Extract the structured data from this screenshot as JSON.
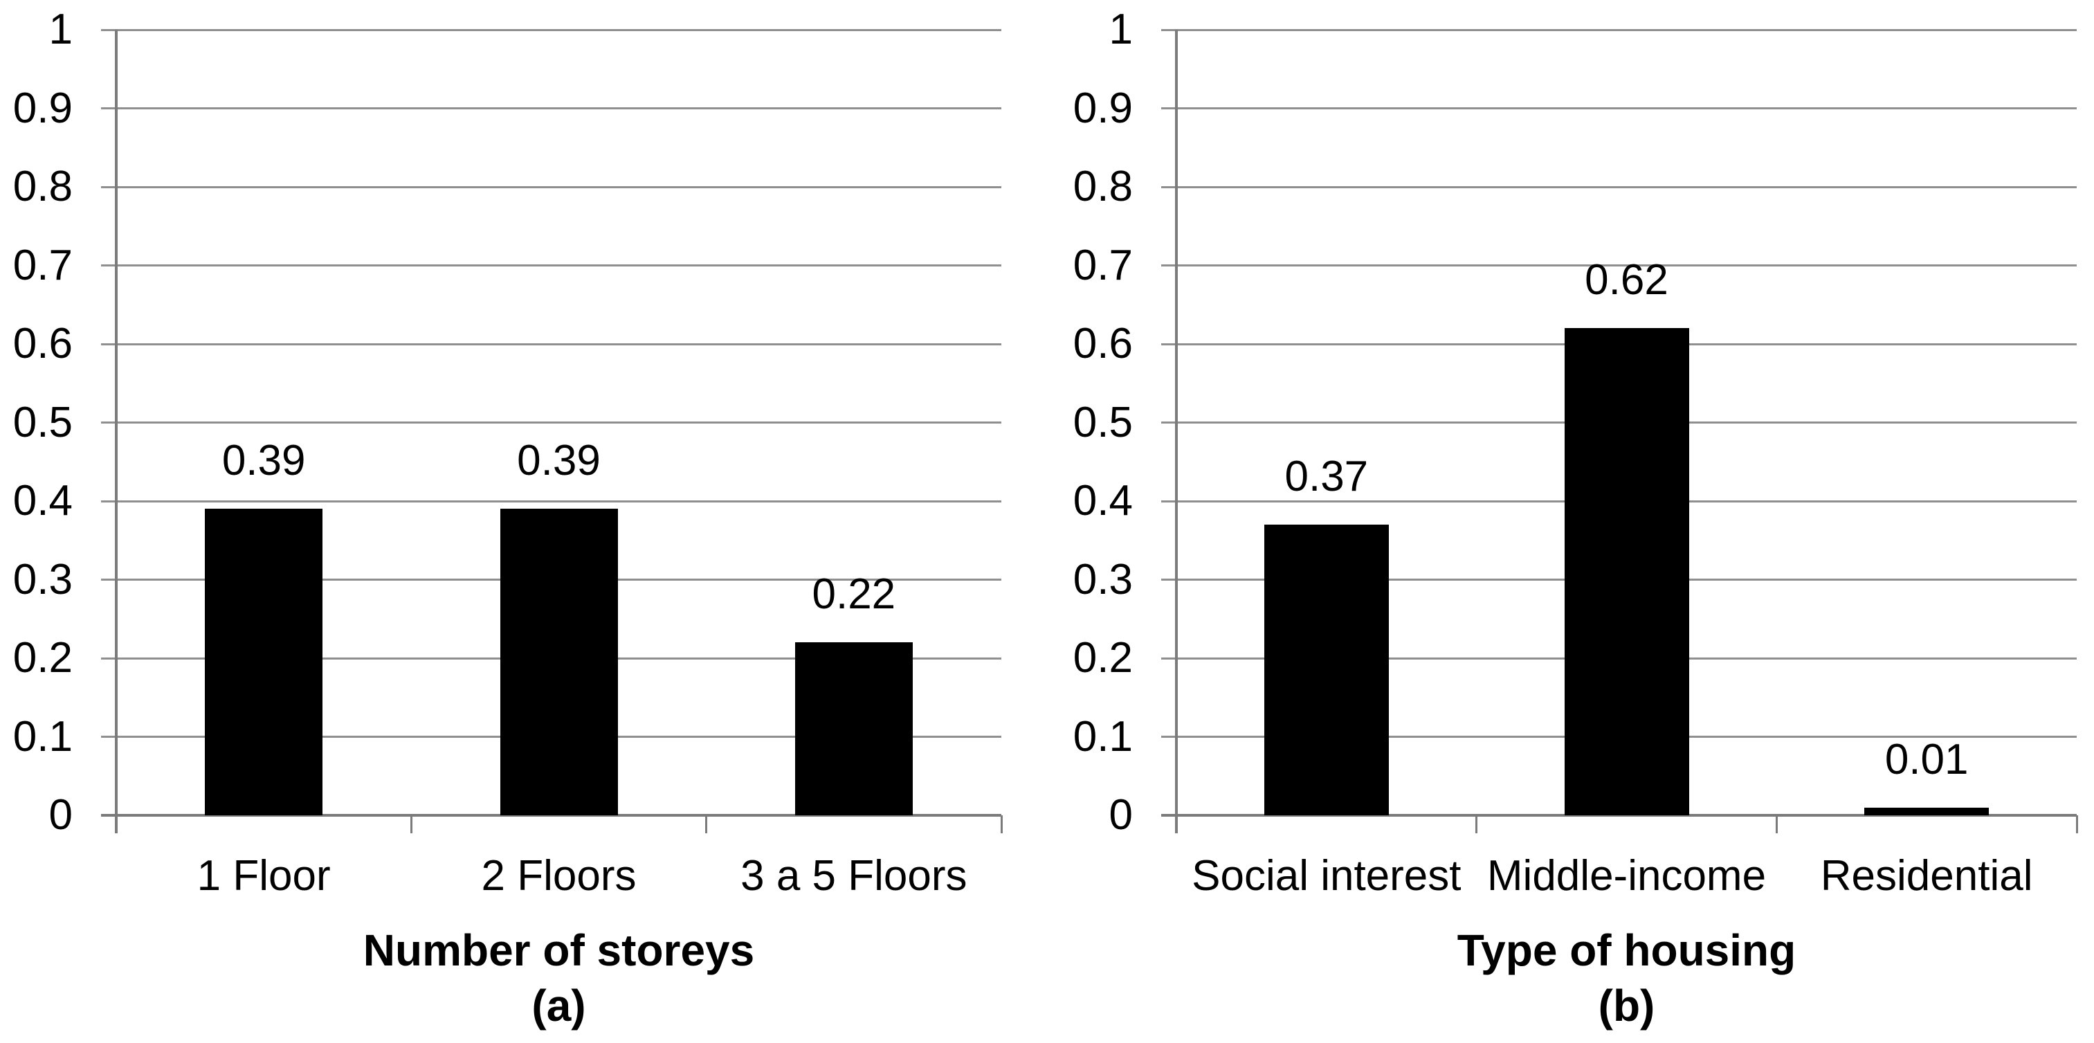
{
  "figure": {
    "background": "#ffffff"
  },
  "styles": {
    "bar_color": "#000000",
    "gridline_color": "#8f8f8f",
    "axis_color": "#7b7b7b",
    "text_color": "#000000"
  },
  "chart_data": [
    {
      "type": "bar",
      "panel": "a",
      "title": "(a)",
      "xlabel": "Number of storeys",
      "ylabel": "",
      "categories": [
        "1 Floor",
        "2 Floors",
        "3 a 5 Floors"
      ],
      "values": [
        0.39,
        0.39,
        0.22
      ],
      "data_labels": [
        "0.39",
        "0.39",
        "0.22"
      ],
      "ylim": [
        0,
        1
      ],
      "ytick_step": 0.1,
      "y_ticks": [
        "1",
        "0.9",
        "0.8",
        "0.7",
        "0.6",
        "0.5",
        "0.4",
        "0.3",
        "0.2",
        "0.1",
        "0"
      ],
      "grid": true,
      "legend": false,
      "bar_color": "#000000"
    },
    {
      "type": "bar",
      "panel": "b",
      "title": "(b)",
      "xlabel": "Type of housing",
      "ylabel": "",
      "categories": [
        "Social interest",
        "Middle-income",
        "Residential"
      ],
      "values": [
        0.37,
        0.62,
        0.01
      ],
      "data_labels": [
        "0.37",
        "0.62",
        "0.01"
      ],
      "ylim": [
        0,
        1
      ],
      "ytick_step": 0.1,
      "y_ticks": [
        "1",
        "0.9",
        "0.8",
        "0.7",
        "0.6",
        "0.5",
        "0.4",
        "0.3",
        "0.2",
        "0.1",
        "0"
      ],
      "grid": true,
      "legend": false,
      "bar_color": "#000000"
    }
  ]
}
